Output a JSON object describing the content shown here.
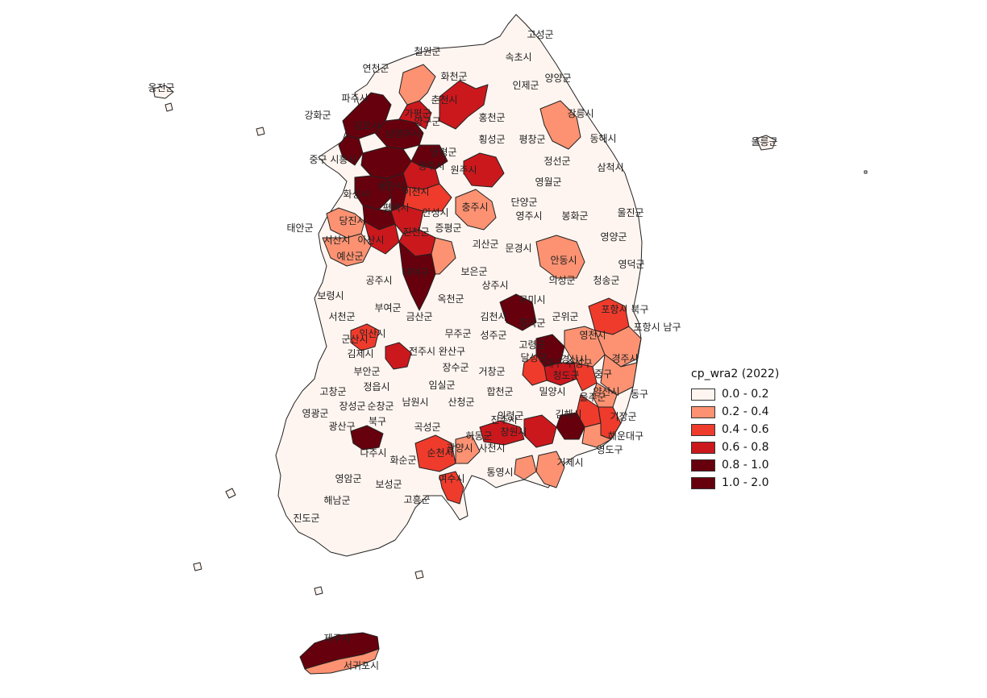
{
  "map": {
    "legend": {
      "title": "cp_wra2 (2022)",
      "classes": [
        {
          "label": "0.0 - 0.2",
          "color": "#fff5f0"
        },
        {
          "label": "0.2 - 0.4",
          "color": "#fc9272"
        },
        {
          "label": "0.4 - 0.6",
          "color": "#ef3b2c"
        },
        {
          "label": "0.6 - 0.8",
          "color": "#cb181d"
        },
        {
          "label": "0.8 - 1.0",
          "color": "#67000d"
        },
        {
          "label": "1.0 - 2.0",
          "color": "#67000d"
        }
      ]
    },
    "regions": [
      {
        "name": "고성군",
        "class": 0
      },
      {
        "name": "속초시",
        "class": 0
      },
      {
        "name": "철원군",
        "class": 0
      },
      {
        "name": "연천군",
        "class": 0
      },
      {
        "name": "화천군",
        "class": 1
      },
      {
        "name": "양구군",
        "class": 0
      },
      {
        "name": "인제군",
        "class": 0
      },
      {
        "name": "양양군",
        "class": 0
      },
      {
        "name": "옹진군",
        "class": 0
      },
      {
        "name": "파주시",
        "class": 4
      },
      {
        "name": "춘천시",
        "class": 3
      },
      {
        "name": "강릉시",
        "class": 1
      },
      {
        "name": "가평군",
        "class": 4
      },
      {
        "name": "홍천군",
        "class": 0
      },
      {
        "name": "동해시",
        "class": 0
      },
      {
        "name": "울릉군",
        "class": 0
      },
      {
        "name": "횡성군",
        "class": 0
      },
      {
        "name": "평창군",
        "class": 0
      },
      {
        "name": "양평군",
        "class": 4
      },
      {
        "name": "정선군",
        "class": 0
      },
      {
        "name": "삼척시",
        "class": 0
      },
      {
        "name": "원주시",
        "class": 3
      },
      {
        "name": "광주시",
        "class": 4
      },
      {
        "name": "영월군",
        "class": 0
      },
      {
        "name": "이천시",
        "class": 2
      },
      {
        "name": "충주시",
        "class": 1
      },
      {
        "name": "단양군",
        "class": 0
      },
      {
        "name": "울진군",
        "class": 0
      },
      {
        "name": "당진시",
        "class": 1
      },
      {
        "name": "평택시",
        "class": 4
      },
      {
        "name": "안성시",
        "class": 3
      },
      {
        "name": "영주시",
        "class": 0
      },
      {
        "name": "봉화군",
        "class": 0
      },
      {
        "name": "태안군",
        "class": 0
      },
      {
        "name": "진천군",
        "class": 3
      },
      {
        "name": "증평군",
        "class": 1
      },
      {
        "name": "서산시",
        "class": 1
      },
      {
        "name": "아산시",
        "class": 3
      },
      {
        "name": "괴산군",
        "class": 0
      },
      {
        "name": "문경시",
        "class": 0
      },
      {
        "name": "영양군",
        "class": 0
      },
      {
        "name": "예산군",
        "class": 0
      },
      {
        "name": "안동시",
        "class": 1
      },
      {
        "name": "영덕군",
        "class": 0
      },
      {
        "name": "공주시",
        "class": 0
      },
      {
        "name": "대덕구",
        "class": 4
      },
      {
        "name": "보은군",
        "class": 0
      },
      {
        "name": "의성군",
        "class": 0
      },
      {
        "name": "청송군",
        "class": 0
      },
      {
        "name": "보령시",
        "class": 0
      },
      {
        "name": "상주시",
        "class": 0
      },
      {
        "name": "옥천군",
        "class": 0
      },
      {
        "name": "부여군",
        "class": 0
      },
      {
        "name": "금산군",
        "class": 0
      },
      {
        "name": "구미시",
        "class": 4
      },
      {
        "name": "포항시 북구",
        "class": 2
      },
      {
        "name": "서천군",
        "class": 0
      },
      {
        "name": "김천시",
        "class": 0
      },
      {
        "name": "칠곡군",
        "class": 4
      },
      {
        "name": "군위군",
        "class": 0
      },
      {
        "name": "익산시",
        "class": 2
      },
      {
        "name": "무주군",
        "class": 0
      },
      {
        "name": "성주군",
        "class": 0
      },
      {
        "name": "영천시",
        "class": 1
      },
      {
        "name": "포항시 남구",
        "class": 1
      },
      {
        "name": "군산시",
        "class": 0
      },
      {
        "name": "전주시 완산구",
        "class": 3
      },
      {
        "name": "경산시",
        "class": 2
      },
      {
        "name": "경주시",
        "class": 1
      },
      {
        "name": "김제시",
        "class": 0
      },
      {
        "name": "달성군",
        "class": 2
      },
      {
        "name": "장수군",
        "class": 0
      },
      {
        "name": "거창군",
        "class": 0
      },
      {
        "name": "부안군",
        "class": 0
      },
      {
        "name": "청도군",
        "class": 0
      },
      {
        "name": "중구",
        "class": 1
      },
      {
        "name": "고창군",
        "class": 0
      },
      {
        "name": "정읍시",
        "class": 0
      },
      {
        "name": "합천군",
        "class": 0
      },
      {
        "name": "밀양시",
        "class": 0
      },
      {
        "name": "양산시",
        "class": 2
      },
      {
        "name": "동구",
        "class": 1
      },
      {
        "name": "임실군",
        "class": 0
      },
      {
        "name": "남원시",
        "class": 0
      },
      {
        "name": "산청군",
        "class": 0
      },
      {
        "name": "영광군",
        "class": 0
      },
      {
        "name": "장성군",
        "class": 0
      },
      {
        "name": "순창군",
        "class": 0
      },
      {
        "name": "의령군",
        "class": 0
      },
      {
        "name": "김해시",
        "class": 4
      },
      {
        "name": "기장군",
        "class": 2
      },
      {
        "name": "광산구",
        "class": 4
      },
      {
        "name": "북구",
        "class": 4
      },
      {
        "name": "창원시",
        "class": 3
      },
      {
        "name": "해운대구",
        "class": 1
      },
      {
        "name": "곡성군",
        "class": 0
      },
      {
        "name": "나주시",
        "class": 0
      },
      {
        "name": "순천시",
        "class": 2
      },
      {
        "name": "하동군",
        "class": 0
      },
      {
        "name": "영도구",
        "class": 1
      },
      {
        "name": "화순군",
        "class": 0
      },
      {
        "name": "진주시",
        "class": 3
      },
      {
        "name": "거제시",
        "class": 1
      },
      {
        "name": "영암군",
        "class": 0
      },
      {
        "name": "보성군",
        "class": 0
      },
      {
        "name": "통영시",
        "class": 1
      },
      {
        "name": "해남군",
        "class": 0
      },
      {
        "name": "고흥군",
        "class": 0
      },
      {
        "name": "진도군",
        "class": 0
      },
      {
        "name": "제주시",
        "class": 5
      },
      {
        "name": "서귀포시",
        "class": 1
      },
      {
        "name": "강화군",
        "class": 4
      },
      {
        "name": "김포시",
        "class": 4
      },
      {
        "name": "중구 시흥시",
        "class": 1
      },
      {
        "name": "화성시",
        "class": 4
      },
      {
        "name": "용인시",
        "class": 4
      },
      {
        "name": "남양주시",
        "class": 4
      },
      {
        "name": "여수시",
        "class": 2
      },
      {
        "name": "광양시",
        "class": 1
      },
      {
        "name": "사천시",
        "class": 0
      },
      {
        "name": "고령군",
        "class": 2
      },
      {
        "name": "대구 수성구",
        "class": 3
      },
      {
        "name": "울주군",
        "class": 1
      }
    ]
  }
}
